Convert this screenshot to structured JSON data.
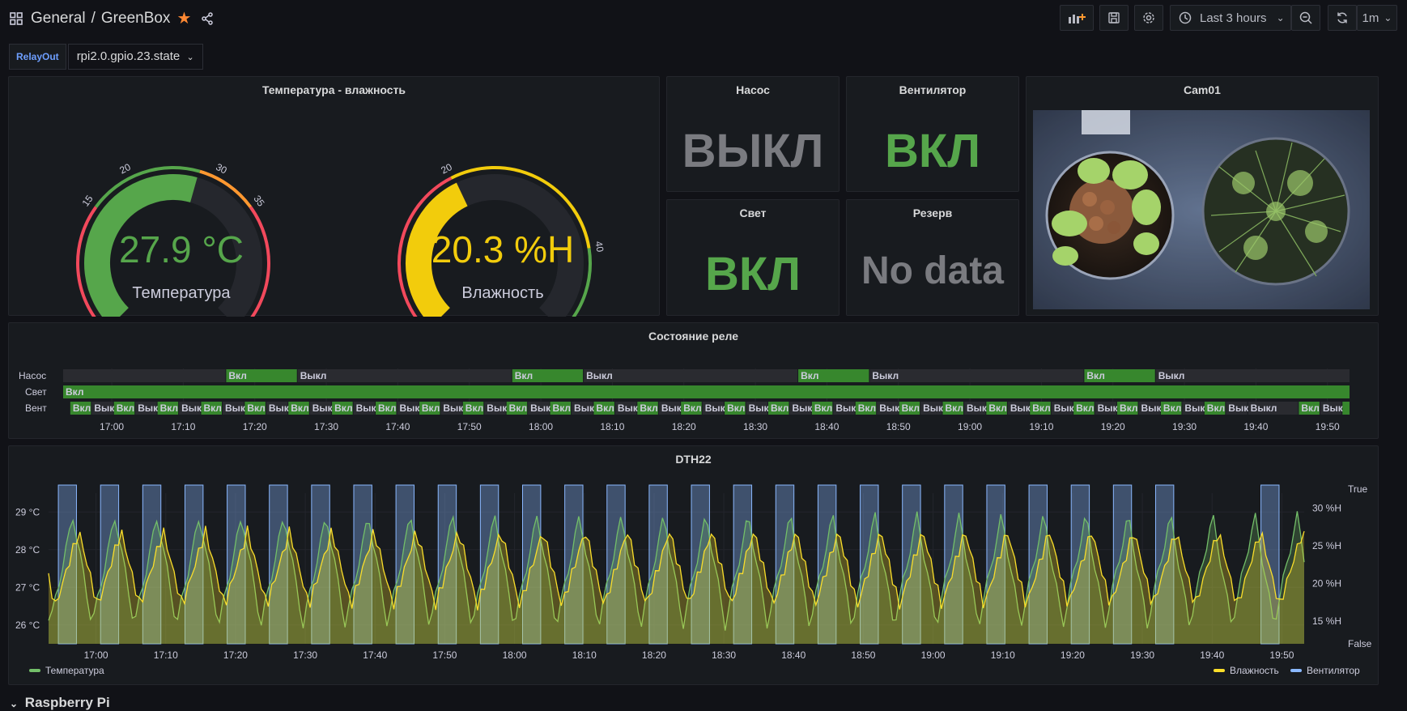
{
  "header": {
    "folder": "General",
    "separator": "/",
    "dashboard": "GreenBox",
    "time_range": "Last 3 hours",
    "refresh": "1m"
  },
  "variable": {
    "label": "RelayOut",
    "value": "rpi2.0.gpio.23.state",
    "caret": "⌄"
  },
  "colors": {
    "green": "#56a64b",
    "yellow": "#f2cc0c",
    "blue": "#8ab8ff",
    "red": "#f2495c",
    "orange": "#ff9830",
    "gray": "#7a7b80"
  },
  "gauges": {
    "title": "Температура - влажность",
    "temperature": {
      "value_text": "27.9 °C",
      "value": 27.9,
      "min": 0,
      "max": 50,
      "name": "Температура",
      "ticks": [
        "0",
        "15",
        "20",
        "30",
        "35",
        "50"
      ]
    },
    "humidity": {
      "value_text": "20.3 %H",
      "value": 20.3,
      "min": 0,
      "max": 50,
      "name": "Влажность",
      "ticks": [
        "0",
        "20",
        "40",
        "50"
      ]
    }
  },
  "stats": {
    "pump": {
      "title": "Насос",
      "value": "ВЫКЛ"
    },
    "fan": {
      "title": "Вентилятор",
      "value": "ВКЛ"
    },
    "light": {
      "title": "Свет",
      "value": "ВКЛ"
    },
    "reserve": {
      "title": "Резерв",
      "value": "No data"
    }
  },
  "camera": {
    "title": "Cam01"
  },
  "relay_state": {
    "title": "Состояние реле",
    "rows": [
      "Насос",
      "Свет",
      "Вент"
    ],
    "on_label": "Вкл",
    "off_label": "Выкл",
    "x_ticks": [
      "17:00",
      "17:10",
      "17:20",
      "17:30",
      "17:40",
      "17:50",
      "18:00",
      "18:10",
      "18:20",
      "18:30",
      "18:40",
      "18:50",
      "19:00",
      "19:10",
      "19:20",
      "19:30",
      "19:40",
      "19:50"
    ]
  },
  "chart_data": {
    "type": "line",
    "title": "DTH22",
    "x_ticks": [
      "17:00",
      "17:10",
      "17:20",
      "17:30",
      "17:40",
      "17:50",
      "18:00",
      "18:10",
      "18:20",
      "18:30",
      "18:40",
      "18:50",
      "19:00",
      "19:10",
      "19:20",
      "19:30",
      "19:40",
      "19:50"
    ],
    "y_left_ticks": [
      "29 °C",
      "28 °C",
      "27 °C",
      "26 °C"
    ],
    "y_right_ticks": [
      "30 %H",
      "25 %H",
      "20 %H",
      "15 %H"
    ],
    "y_right2_ticks": [
      "True",
      "False"
    ],
    "ylim_left": [
      25.5,
      29.5
    ],
    "ylim_right": [
      12,
      32
    ],
    "legend_left": [
      {
        "name": "Температура",
        "color": "#73bf69"
      }
    ],
    "legend_right": [
      {
        "name": "Влажность",
        "color": "#fade2a"
      },
      {
        "name": "Вентилятор",
        "color": "#8ab8ff"
      }
    ]
  },
  "row_section": {
    "title": "Raspberry Pi"
  }
}
